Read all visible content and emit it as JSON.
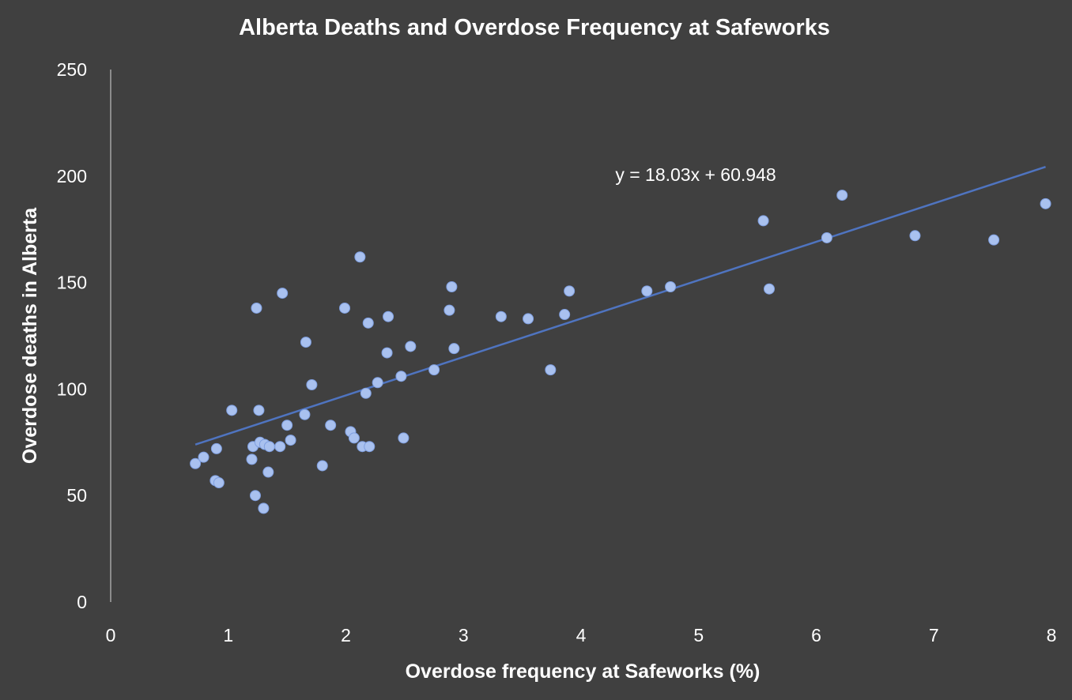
{
  "chart_data": {
    "type": "scatter",
    "title": "Alberta Deaths and Overdose Frequency at Safeworks",
    "xlabel": "Overdose frequency at Safeworks (%)",
    "ylabel": "Overdose deaths in Alberta",
    "xlim": [
      0,
      8
    ],
    "ylim": [
      0,
      250
    ],
    "x_ticks": [
      "0",
      "1",
      "2",
      "3",
      "4",
      "5",
      "6",
      "7",
      "8"
    ],
    "y_ticks": [
      "0",
      "50",
      "100",
      "150",
      "200",
      "250"
    ],
    "grid": false,
    "legend": "none",
    "point_color": "#a9c1ef",
    "trendline": {
      "slope": 18.03,
      "intercept": 60.948,
      "x_range": [
        0.72,
        7.95
      ],
      "color": "#4f74c0",
      "label": "y = 18.03x + 60.948"
    },
    "points": [
      {
        "x": 0.72,
        "y": 65
      },
      {
        "x": 0.79,
        "y": 68
      },
      {
        "x": 0.9,
        "y": 72
      },
      {
        "x": 0.89,
        "y": 57
      },
      {
        "x": 0.92,
        "y": 56
      },
      {
        "x": 1.03,
        "y": 90
      },
      {
        "x": 1.2,
        "y": 67
      },
      {
        "x": 1.21,
        "y": 73
      },
      {
        "x": 1.23,
        "y": 50
      },
      {
        "x": 1.24,
        "y": 138
      },
      {
        "x": 1.26,
        "y": 90
      },
      {
        "x": 1.27,
        "y": 75
      },
      {
        "x": 1.3,
        "y": 44
      },
      {
        "x": 1.31,
        "y": 74
      },
      {
        "x": 1.34,
        "y": 61
      },
      {
        "x": 1.35,
        "y": 73
      },
      {
        "x": 1.44,
        "y": 73
      },
      {
        "x": 1.46,
        "y": 145
      },
      {
        "x": 1.5,
        "y": 83
      },
      {
        "x": 1.53,
        "y": 76
      },
      {
        "x": 1.65,
        "y": 88
      },
      {
        "x": 1.66,
        "y": 122
      },
      {
        "x": 1.71,
        "y": 102
      },
      {
        "x": 1.8,
        "y": 64
      },
      {
        "x": 1.87,
        "y": 83
      },
      {
        "x": 1.99,
        "y": 138
      },
      {
        "x": 2.04,
        "y": 80
      },
      {
        "x": 2.07,
        "y": 77
      },
      {
        "x": 2.12,
        "y": 162
      },
      {
        "x": 2.14,
        "y": 73
      },
      {
        "x": 2.17,
        "y": 98
      },
      {
        "x": 2.19,
        "y": 131
      },
      {
        "x": 2.2,
        "y": 73
      },
      {
        "x": 2.27,
        "y": 103
      },
      {
        "x": 2.35,
        "y": 117
      },
      {
        "x": 2.36,
        "y": 134
      },
      {
        "x": 2.47,
        "y": 106
      },
      {
        "x": 2.49,
        "y": 77
      },
      {
        "x": 2.55,
        "y": 120
      },
      {
        "x": 2.75,
        "y": 109
      },
      {
        "x": 2.88,
        "y": 137
      },
      {
        "x": 2.9,
        "y": 148
      },
      {
        "x": 2.92,
        "y": 119
      },
      {
        "x": 3.32,
        "y": 134
      },
      {
        "x": 3.55,
        "y": 133
      },
      {
        "x": 3.74,
        "y": 109
      },
      {
        "x": 3.86,
        "y": 135
      },
      {
        "x": 3.9,
        "y": 146
      },
      {
        "x": 4.56,
        "y": 146
      },
      {
        "x": 4.76,
        "y": 148
      },
      {
        "x": 5.55,
        "y": 179
      },
      {
        "x": 5.6,
        "y": 147
      },
      {
        "x": 6.09,
        "y": 171
      },
      {
        "x": 6.22,
        "y": 191
      },
      {
        "x": 6.84,
        "y": 172
      },
      {
        "x": 7.51,
        "y": 170
      },
      {
        "x": 7.95,
        "y": 187
      }
    ]
  }
}
